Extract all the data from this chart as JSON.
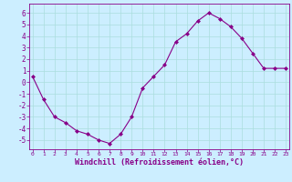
{
  "x": [
    0,
    1,
    2,
    3,
    4,
    5,
    6,
    7,
    8,
    9,
    10,
    11,
    12,
    13,
    14,
    15,
    16,
    17,
    18,
    19,
    20,
    21,
    22,
    23
  ],
  "y": [
    0.5,
    -1.5,
    -3.0,
    -3.5,
    -4.2,
    -4.5,
    -5.0,
    -5.3,
    -4.5,
    -3.0,
    -0.5,
    0.5,
    1.5,
    3.5,
    4.2,
    5.3,
    6.0,
    5.5,
    4.8,
    3.8,
    2.5,
    1.2,
    1.2,
    1.2
  ],
  "line_color": "#880088",
  "marker": "D",
  "marker_size": 2.0,
  "bg_color": "#cceeff",
  "grid_color": "#aadddd",
  "xlabel": "Windchill (Refroidissement éolien,°C)",
  "label_color": "#880088",
  "tick_color": "#880088",
  "spine_color": "#880088",
  "ylim": [
    -5.8,
    6.8
  ],
  "xlim": [
    -0.3,
    23.3
  ],
  "yticks": [
    -5,
    -4,
    -3,
    -2,
    -1,
    0,
    1,
    2,
    3,
    4,
    5,
    6
  ],
  "xticks": [
    0,
    1,
    2,
    3,
    4,
    5,
    6,
    7,
    8,
    9,
    10,
    11,
    12,
    13,
    14,
    15,
    16,
    17,
    18,
    19,
    20,
    21,
    22,
    23
  ],
  "ytick_fontsize": 5.5,
  "xtick_fontsize": 4.5,
  "xlabel_fontsize": 6.0
}
